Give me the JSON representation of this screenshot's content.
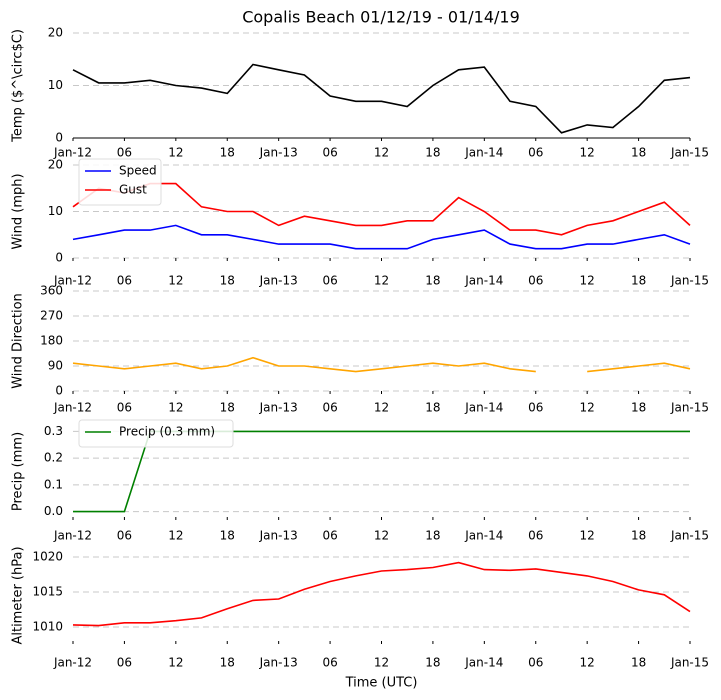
{
  "chart_data": [
    {
      "type": "line",
      "title": "Copalis Beach 01/12/19 - 01/14/19",
      "ylabel": "Temp ($^\\circ$C)",
      "x": [
        "2019-01-12T00:00",
        "2019-01-12T03:00",
        "2019-01-12T06:00",
        "2019-01-12T09:00",
        "2019-01-12T12:00",
        "2019-01-12T15:00",
        "2019-01-12T18:00",
        "2019-01-12T21:00",
        "2019-01-13T00:00",
        "2019-01-13T03:00",
        "2019-01-13T06:00",
        "2019-01-13T09:00",
        "2019-01-13T12:00",
        "2019-01-13T15:00",
        "2019-01-13T18:00",
        "2019-01-13T21:00",
        "2019-01-14T00:00",
        "2019-01-14T03:00",
        "2019-01-14T06:00",
        "2019-01-14T09:00",
        "2019-01-14T12:00",
        "2019-01-14T15:00",
        "2019-01-14T18:00",
        "2019-01-14T21:00",
        "2019-01-15T00:00"
      ],
      "series": [
        {
          "name": "Temp",
          "color": "#000000",
          "values": [
            13,
            10.5,
            10.5,
            11,
            10,
            9.5,
            8.5,
            14,
            13,
            12,
            8,
            7,
            7,
            6,
            10,
            13,
            13.5,
            7,
            6,
            1,
            2.5,
            2,
            6,
            11,
            11.5
          ]
        }
      ],
      "xlim": [
        "2019-01-12T00:00",
        "2019-01-15T00:00"
      ],
      "xticks": [
        {
          "value": "2019-01-12T00:00",
          "label": "Jan-12"
        },
        {
          "value": "2019-01-12T06:00",
          "label": "06"
        },
        {
          "value": "2019-01-12T12:00",
          "label": "12"
        },
        {
          "value": "2019-01-12T18:00",
          "label": "18"
        },
        {
          "value": "2019-01-13T00:00",
          "label": "Jan-13"
        },
        {
          "value": "2019-01-13T06:00",
          "label": "06"
        },
        {
          "value": "2019-01-13T12:00",
          "label": "12"
        },
        {
          "value": "2019-01-13T18:00",
          "label": "18"
        },
        {
          "value": "2019-01-14T00:00",
          "label": "Jan-14"
        },
        {
          "value": "2019-01-14T06:00",
          "label": "06"
        },
        {
          "value": "2019-01-14T12:00",
          "label": "12"
        },
        {
          "value": "2019-01-14T18:00",
          "label": "18"
        },
        {
          "value": "2019-01-15T00:00",
          "label": "Jan-15"
        }
      ],
      "ylim": [
        0,
        20
      ],
      "yticks": [
        0,
        10,
        20
      ],
      "grid": true
    },
    {
      "type": "line",
      "ylabel": "Wind (mph)",
      "legend": "upper left",
      "x": [
        "2019-01-12T00:00",
        "2019-01-12T03:00",
        "2019-01-12T06:00",
        "2019-01-12T09:00",
        "2019-01-12T12:00",
        "2019-01-12T15:00",
        "2019-01-12T18:00",
        "2019-01-12T21:00",
        "2019-01-13T00:00",
        "2019-01-13T03:00",
        "2019-01-13T06:00",
        "2019-01-13T09:00",
        "2019-01-13T12:00",
        "2019-01-13T15:00",
        "2019-01-13T18:00",
        "2019-01-13T21:00",
        "2019-01-14T00:00",
        "2019-01-14T03:00",
        "2019-01-14T06:00",
        "2019-01-14T09:00",
        "2019-01-14T12:00",
        "2019-01-14T15:00",
        "2019-01-14T18:00",
        "2019-01-14T21:00",
        "2019-01-15T00:00"
      ],
      "series": [
        {
          "name": "Speed",
          "color": "#0000ff",
          "values": [
            4,
            5,
            6,
            6,
            7,
            5,
            5,
            4,
            3,
            3,
            3,
            2,
            2,
            2,
            4,
            5,
            6,
            3,
            2,
            2,
            3,
            3,
            4,
            5,
            3
          ]
        },
        {
          "name": "Gust",
          "color": "#ff0000",
          "values": [
            11,
            15,
            14,
            16,
            16,
            11,
            10,
            10,
            7,
            9,
            8,
            7,
            7,
            8,
            8,
            13,
            10,
            6,
            6,
            5,
            7,
            8,
            10,
            12,
            7
          ]
        }
      ],
      "xlim": [
        "2019-01-12T00:00",
        "2019-01-15T00:00"
      ],
      "xticks": [
        {
          "value": "2019-01-12T00:00",
          "label": "Jan-12"
        },
        {
          "value": "2019-01-12T06:00",
          "label": "06"
        },
        {
          "value": "2019-01-12T12:00",
          "label": "12"
        },
        {
          "value": "2019-01-12T18:00",
          "label": "18"
        },
        {
          "value": "2019-01-13T00:00",
          "label": "Jan-13"
        },
        {
          "value": "2019-01-13T06:00",
          "label": "06"
        },
        {
          "value": "2019-01-13T12:00",
          "label": "12"
        },
        {
          "value": "2019-01-13T18:00",
          "label": "18"
        },
        {
          "value": "2019-01-14T00:00",
          "label": "Jan-14"
        },
        {
          "value": "2019-01-14T06:00",
          "label": "06"
        },
        {
          "value": "2019-01-14T12:00",
          "label": "12"
        },
        {
          "value": "2019-01-14T18:00",
          "label": "18"
        },
        {
          "value": "2019-01-15T00:00",
          "label": "Jan-15"
        }
      ],
      "ylim": [
        0,
        20
      ],
      "yticks": [
        0,
        10,
        20
      ],
      "grid": true
    },
    {
      "type": "line",
      "ylabel": "Wind Direction",
      "x": [
        "2019-01-12T00:00",
        "2019-01-12T03:00",
        "2019-01-12T06:00",
        "2019-01-12T09:00",
        "2019-01-12T12:00",
        "2019-01-12T15:00",
        "2019-01-12T18:00",
        "2019-01-12T21:00",
        "2019-01-13T00:00",
        "2019-01-13T03:00",
        "2019-01-13T06:00",
        "2019-01-13T09:00",
        "2019-01-13T12:00",
        "2019-01-13T15:00",
        "2019-01-13T18:00",
        "2019-01-13T21:00",
        "2019-01-14T00:00",
        "2019-01-14T03:00",
        "2019-01-14T06:00",
        "2019-01-14T09:00",
        "2019-01-14T12:00",
        "2019-01-14T15:00",
        "2019-01-14T18:00",
        "2019-01-14T21:00",
        "2019-01-15T00:00"
      ],
      "series": [
        {
          "name": "Wind Direction",
          "color": "#ffa500",
          "values": [
            100,
            90,
            80,
            90,
            100,
            80,
            90,
            120,
            90,
            90,
            80,
            70,
            80,
            90,
            100,
            90,
            100,
            80,
            70,
            null,
            70,
            80,
            90,
            100,
            80
          ]
        }
      ],
      "xlim": [
        "2019-01-12T00:00",
        "2019-01-15T00:00"
      ],
      "xticks": [
        {
          "value": "2019-01-12T00:00",
          "label": "Jan-12"
        },
        {
          "value": "2019-01-12T06:00",
          "label": "06"
        },
        {
          "value": "2019-01-12T12:00",
          "label": "12"
        },
        {
          "value": "2019-01-12T18:00",
          "label": "18"
        },
        {
          "value": "2019-01-13T00:00",
          "label": "Jan-13"
        },
        {
          "value": "2019-01-13T06:00",
          "label": "06"
        },
        {
          "value": "2019-01-13T12:00",
          "label": "12"
        },
        {
          "value": "2019-01-13T18:00",
          "label": "18"
        },
        {
          "value": "2019-01-14T00:00",
          "label": "Jan-14"
        },
        {
          "value": "2019-01-14T06:00",
          "label": "06"
        },
        {
          "value": "2019-01-14T12:00",
          "label": "12"
        },
        {
          "value": "2019-01-14T18:00",
          "label": "18"
        },
        {
          "value": "2019-01-15T00:00",
          "label": "Jan-15"
        }
      ],
      "ylim": [
        0,
        360
      ],
      "yticks": [
        0,
        90,
        180,
        270,
        360
      ],
      "grid": true
    },
    {
      "type": "line",
      "ylabel": "Precip (mm)",
      "legend": "upper left",
      "x": [
        "2019-01-12T00:00",
        "2019-01-12T03:00",
        "2019-01-12T06:00",
        "2019-01-12T09:00",
        "2019-01-12T12:00",
        "2019-01-12T15:00",
        "2019-01-12T18:00",
        "2019-01-12T21:00",
        "2019-01-13T00:00",
        "2019-01-13T03:00",
        "2019-01-13T06:00",
        "2019-01-13T09:00",
        "2019-01-13T12:00",
        "2019-01-13T15:00",
        "2019-01-13T18:00",
        "2019-01-13T21:00",
        "2019-01-14T00:00",
        "2019-01-14T03:00",
        "2019-01-14T06:00",
        "2019-01-14T09:00",
        "2019-01-14T12:00",
        "2019-01-14T15:00",
        "2019-01-14T18:00",
        "2019-01-14T21:00",
        "2019-01-15T00:00"
      ],
      "series": [
        {
          "name": "Precip (0.3 mm)",
          "color": "#008000",
          "values": [
            0,
            0,
            0,
            0.3,
            0.3,
            0.3,
            0.3,
            0.3,
            0.3,
            0.3,
            0.3,
            0.3,
            0.3,
            0.3,
            0.3,
            0.3,
            0.3,
            0.3,
            0.3,
            0.3,
            0.3,
            0.3,
            0.3,
            0.3,
            0.3
          ]
        }
      ],
      "xlim": [
        "2019-01-12T00:00",
        "2019-01-15T00:00"
      ],
      "xticks": [
        {
          "value": "2019-01-12T00:00",
          "label": "Jan-12"
        },
        {
          "value": "2019-01-12T06:00",
          "label": "06"
        },
        {
          "value": "2019-01-12T12:00",
          "label": "12"
        },
        {
          "value": "2019-01-12T18:00",
          "label": "18"
        },
        {
          "value": "2019-01-13T00:00",
          "label": "Jan-13"
        },
        {
          "value": "2019-01-13T06:00",
          "label": "06"
        },
        {
          "value": "2019-01-13T12:00",
          "label": "12"
        },
        {
          "value": "2019-01-13T18:00",
          "label": "18"
        },
        {
          "value": "2019-01-14T00:00",
          "label": "Jan-14"
        },
        {
          "value": "2019-01-14T06:00",
          "label": "06"
        },
        {
          "value": "2019-01-14T12:00",
          "label": "12"
        },
        {
          "value": "2019-01-14T18:00",
          "label": "18"
        },
        {
          "value": "2019-01-15T00:00",
          "label": "Jan-15"
        }
      ],
      "ylim": [
        -0.02,
        0.32
      ],
      "yticks": [
        {
          "value": 0,
          "label": "0.0"
        },
        {
          "value": 0.1,
          "label": "0.1"
        },
        {
          "value": 0.2,
          "label": "0.2"
        },
        {
          "value": 0.3,
          "label": "0.3"
        }
      ],
      "grid": true
    },
    {
      "type": "line",
      "ylabel": "Altimeter (hPa)",
      "xlabel": "Time (UTC)",
      "x": [
        "2019-01-12T00:00",
        "2019-01-12T03:00",
        "2019-01-12T06:00",
        "2019-01-12T09:00",
        "2019-01-12T12:00",
        "2019-01-12T15:00",
        "2019-01-12T18:00",
        "2019-01-12T21:00",
        "2019-01-13T00:00",
        "2019-01-13T03:00",
        "2019-01-13T06:00",
        "2019-01-13T09:00",
        "2019-01-13T12:00",
        "2019-01-13T15:00",
        "2019-01-13T18:00",
        "2019-01-13T21:00",
        "2019-01-14T00:00",
        "2019-01-14T03:00",
        "2019-01-14T06:00",
        "2019-01-14T09:00",
        "2019-01-14T12:00",
        "2019-01-14T15:00",
        "2019-01-14T18:00",
        "2019-01-14T21:00",
        "2019-01-15T00:00"
      ],
      "series": [
        {
          "name": "Altimeter",
          "color": "#ff0000",
          "values": [
            1010.3,
            1010.2,
            1010.6,
            1010.6,
            1010.9,
            1011.3,
            1012.6,
            1013.8,
            1014,
            1015.4,
            1016.5,
            1017.3,
            1018,
            1018.2,
            1018.5,
            1019.2,
            1018.2,
            1018.1,
            1018.3,
            1017.8,
            1017.3,
            1016.5,
            1015.3,
            1014.6,
            1012.2
          ]
        }
      ],
      "xlim": [
        "2019-01-12T00:00",
        "2019-01-15T00:00"
      ],
      "xticks": [
        {
          "value": "2019-01-12T00:00",
          "label": "Jan-12"
        },
        {
          "value": "2019-01-12T06:00",
          "label": "06"
        },
        {
          "value": "2019-01-12T12:00",
          "label": "12"
        },
        {
          "value": "2019-01-12T18:00",
          "label": "18"
        },
        {
          "value": "2019-01-13T00:00",
          "label": "Jan-13"
        },
        {
          "value": "2019-01-13T06:00",
          "label": "06"
        },
        {
          "value": "2019-01-13T12:00",
          "label": "12"
        },
        {
          "value": "2019-01-13T18:00",
          "label": "18"
        },
        {
          "value": "2019-01-14T00:00",
          "label": "Jan-14"
        },
        {
          "value": "2019-01-14T06:00",
          "label": "06"
        },
        {
          "value": "2019-01-14T12:00",
          "label": "12"
        },
        {
          "value": "2019-01-14T18:00",
          "label": "18"
        },
        {
          "value": "2019-01-15T00:00",
          "label": "Jan-15"
        }
      ],
      "ylim": [
        1008,
        1021
      ],
      "yticks": [
        1010,
        1015,
        1020
      ],
      "grid": true
    }
  ]
}
